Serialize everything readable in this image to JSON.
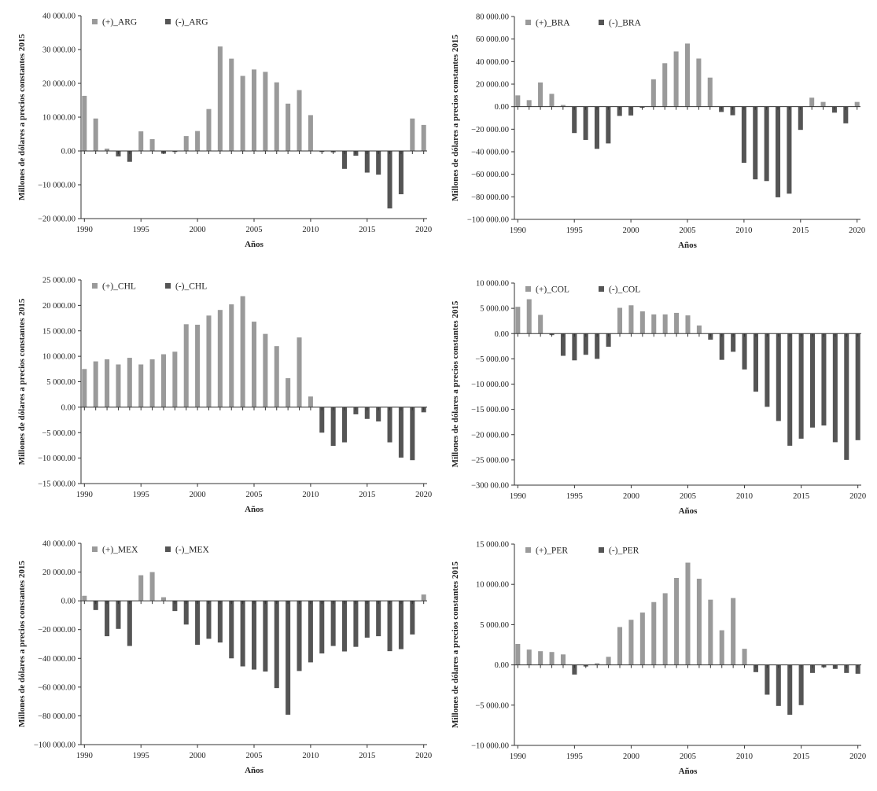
{
  "x_axis_label": "Años",
  "y_axis_label": "Millones de dólares a precios constantes 2015",
  "colors": {
    "positive": "#9a9a9a",
    "negative": "#555555",
    "axis": "#333333"
  },
  "chart_data": [
    {
      "type": "bar",
      "country": "ARG",
      "legend": [
        "(+)_ARG",
        "(-)_ARG"
      ],
      "xlabel": "Años",
      "ylabel": "Millones de dólares a precios constantes 2015",
      "ylim": [
        -20000,
        40000
      ],
      "ystep": 10000,
      "ytick_labels": [
        "40 000.00",
        "30 000.00",
        "20 000.00",
        "10 000.00",
        "0.00",
        "−10 000.00",
        "−20 000.00"
      ],
      "xticks": [
        "1990",
        "1995",
        "2000",
        "2005",
        "2010",
        "2015",
        "2020"
      ],
      "years": [
        1990,
        1991,
        1992,
        1993,
        1994,
        1995,
        1996,
        1997,
        1998,
        1999,
        2000,
        2001,
        2002,
        2003,
        2004,
        2005,
        2006,
        2007,
        2008,
        2009,
        2010,
        2011,
        2012,
        2013,
        2014,
        2015,
        2016,
        2017,
        2018,
        2019,
        2020
      ],
      "values": [
        16300,
        9600,
        700,
        -1600,
        -3200,
        5800,
        3500,
        -800,
        -300,
        4400,
        5900,
        12400,
        30900,
        27300,
        22200,
        24100,
        23400,
        20300,
        14000,
        18000,
        10600,
        -300,
        -400,
        -5300,
        -1400,
        -6400,
        -7000,
        -17000,
        -12800,
        9600,
        7700
      ]
    },
    {
      "type": "bar",
      "country": "BRA",
      "legend": [
        "(+)_BRA",
        "(-)_BRA"
      ],
      "xlabel": "Años",
      "ylabel": "Millones de dólares a precios constantes 2015",
      "ylim": [
        -100000,
        80000
      ],
      "ystep": 20000,
      "ytick_labels": [
        "80 000.00",
        "60 000.00",
        "40 000.00",
        "20 000.00",
        "0.00",
        "−20 000.00",
        "−40 000.00",
        "−60 000.00",
        "−80 000.00",
        "−100 000.00"
      ],
      "xticks": [
        "1990",
        "1995",
        "2000",
        "2005",
        "2010",
        "2015",
        "2020"
      ],
      "years": [
        1990,
        1991,
        1992,
        1993,
        1994,
        1995,
        1996,
        1997,
        1998,
        1999,
        2000,
        2001,
        2002,
        2003,
        2004,
        2005,
        2006,
        2007,
        2008,
        2009,
        2010,
        2011,
        2012,
        2013,
        2014,
        2015,
        2016,
        2017,
        2018,
        2019,
        2020
      ],
      "values": [
        10000,
        5800,
        21500,
        11400,
        1500,
        -23400,
        -29500,
        -37400,
        -32600,
        -8200,
        -7800,
        -1000,
        24300,
        38600,
        49000,
        56000,
        42700,
        25800,
        -4700,
        -7600,
        -49800,
        -64500,
        -66000,
        -80400,
        -77200,
        -20600,
        8000,
        4200,
        -5300,
        -14800,
        4200
      ]
    },
    {
      "type": "bar",
      "country": "CHL",
      "legend": [
        "(+)_CHL",
        "(-)_CHL"
      ],
      "xlabel": "Años",
      "ylabel": "Millones de dólares a precios constantes 2015",
      "ylim": [
        -15000,
        25000
      ],
      "ystep": 5000,
      "ytick_labels": [
        "25 000.00",
        "20 000.00",
        "15 000.00",
        "10 000.00",
        "5 000.00",
        "0.00",
        "−5 000.00",
        "−10 000.00",
        "−15 000.00"
      ],
      "xticks": [
        "1990",
        "1995",
        "2000",
        "2005",
        "2010",
        "2015",
        "2020"
      ],
      "years": [
        1990,
        1991,
        1992,
        1993,
        1994,
        1995,
        1996,
        1997,
        1998,
        1999,
        2000,
        2001,
        2002,
        2003,
        2004,
        2005,
        2006,
        2007,
        2008,
        2009,
        2010,
        2011,
        2012,
        2013,
        2014,
        2015,
        2016,
        2017,
        2018,
        2019,
        2020
      ],
      "values": [
        7500,
        9000,
        9400,
        8400,
        9700,
        8400,
        9400,
        10400,
        10900,
        16300,
        16200,
        18000,
        19100,
        20200,
        21800,
        16800,
        14400,
        12000,
        5700,
        13700,
        2100,
        -5000,
        -7600,
        -6900,
        -1400,
        -2300,
        -2800,
        -6900,
        -9900,
        -10400,
        -1000
      ]
    },
    {
      "type": "bar",
      "country": "COL",
      "legend": [
        "(+)_COL",
        "(-)_COL"
      ],
      "xlabel": "Años",
      "ylabel": "Millones de dólares a precios constantes 2015",
      "ylim": [
        -30000,
        10000
      ],
      "ystep": 5000,
      "ytick_labels": [
        "10 000.00",
        "5 000.00",
        "0.00",
        "−5 000.00",
        "−10 000.00",
        "−15 000.00",
        "−20 000.00",
        "−25 000.00",
        "−300 00.00"
      ],
      "xticks": [
        "1990",
        "1995",
        "2000",
        "2005",
        "2010",
        "2015",
        "2020"
      ],
      "years": [
        1990,
        1991,
        1992,
        1993,
        1994,
        1995,
        1996,
        1997,
        1998,
        1999,
        2000,
        2001,
        2002,
        2003,
        2004,
        2005,
        2006,
        2007,
        2008,
        2009,
        2010,
        2011,
        2012,
        2013,
        2014,
        2015,
        2016,
        2017,
        2018,
        2019,
        2020
      ],
      "values": [
        5300,
        6800,
        3700,
        -300,
        -4400,
        -5300,
        -4200,
        -5000,
        -2600,
        5100,
        5600,
        4400,
        3800,
        3800,
        4100,
        3600,
        1600,
        -1200,
        -5200,
        -3600,
        -7100,
        -11500,
        -14500,
        -17300,
        -22200,
        -20800,
        -18600,
        -18200,
        -21500,
        -25000,
        -21100
      ]
    },
    {
      "type": "bar",
      "country": "MEX",
      "legend": [
        "(+)_MEX",
        "(-)_MEX"
      ],
      "xlabel": "Años",
      "ylabel": "Millones de dólares a precios constantes 2015",
      "ylim": [
        -100000,
        40000
      ],
      "ystep": 20000,
      "ytick_labels": [
        "40 000.00",
        "20 000.00",
        "0.00",
        "−20 000.00",
        "−40 000.00",
        "−60 000.00",
        "−80 000.00",
        "−100 000.00"
      ],
      "xticks": [
        "1990",
        "1995",
        "2000",
        "2005",
        "2010",
        "2015",
        "2020"
      ],
      "years": [
        1990,
        1991,
        1992,
        1993,
        1994,
        1995,
        1996,
        1997,
        1998,
        1999,
        2000,
        2001,
        2002,
        2003,
        2004,
        2005,
        2006,
        2007,
        2008,
        2009,
        2010,
        2011,
        2012,
        2013,
        2014,
        2015,
        2016,
        2017,
        2018,
        2019,
        2020
      ],
      "values": [
        3500,
        -6400,
        -24600,
        -19500,
        -31400,
        17800,
        20000,
        2500,
        -7100,
        -16500,
        -30600,
        -26400,
        -29000,
        -40000,
        -45600,
        -47800,
        -49200,
        -60700,
        -79200,
        -48800,
        -42800,
        -36600,
        -31400,
        -35200,
        -32000,
        -25600,
        -24600,
        -35000,
        -33600,
        -23400,
        4400
      ]
    },
    {
      "type": "bar",
      "country": "PER",
      "legend": [
        "(+)_PER",
        "(-)_PER"
      ],
      "xlabel": "Años",
      "ylabel": "Millones de dólares a precios constantes 2015",
      "ylim": [
        -10000,
        15000
      ],
      "ystep": 5000,
      "ytick_labels": [
        "15 000.00",
        "10 000.00",
        "5 000.00",
        "0.00",
        "−5 000.00",
        "−10 000.00"
      ],
      "xticks": [
        "1990",
        "1995",
        "2000",
        "2005",
        "2010",
        "2015",
        "2020"
      ],
      "years": [
        1990,
        1991,
        1992,
        1993,
        1994,
        1995,
        1996,
        1997,
        1998,
        1999,
        2000,
        2001,
        2002,
        2003,
        2004,
        2005,
        2006,
        2007,
        2008,
        2009,
        2010,
        2011,
        2012,
        2013,
        2014,
        2015,
        2016,
        2017,
        2018,
        2019,
        2020
      ],
      "values": [
        2600,
        1900,
        1700,
        1600,
        1300,
        -1200,
        -200,
        200,
        1000,
        4700,
        5600,
        6500,
        7800,
        8900,
        10800,
        12700,
        10700,
        8100,
        4300,
        8300,
        2000,
        -900,
        -3700,
        -5100,
        -6200,
        -5000,
        -1000,
        -300,
        -500,
        -1000,
        -1100
      ]
    }
  ]
}
